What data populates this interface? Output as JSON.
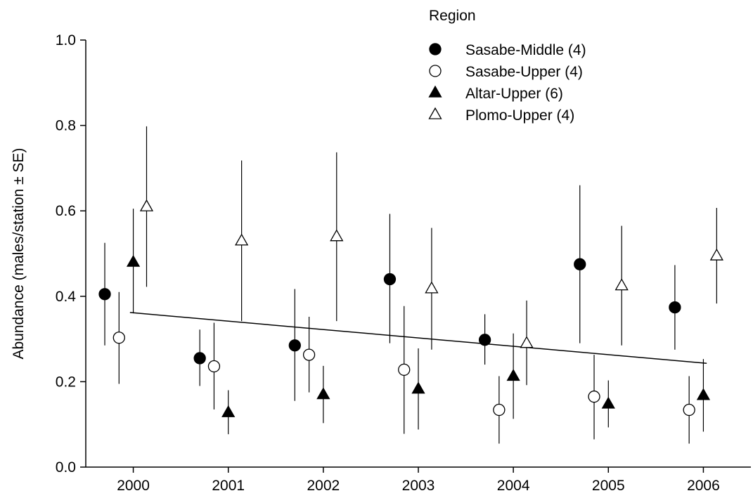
{
  "chart_data": {
    "type": "scatter",
    "title": "",
    "xlabel": "",
    "ylabel": "Abundance (males/station ± SE)",
    "xlim": [
      1999.5,
      2006.5
    ],
    "ylim": [
      0.0,
      1.0
    ],
    "x_ticks": [
      "2000",
      "2001",
      "2002",
      "2003",
      "2004",
      "2005",
      "2006"
    ],
    "y_ticks": [
      "0.0",
      "0.2",
      "0.4",
      "0.6",
      "0.8",
      "1.0"
    ],
    "grid": false,
    "legend": {
      "title": "Region",
      "position": "top-right"
    },
    "x": [
      2000,
      2001,
      2002,
      2003,
      2004,
      2005,
      2006
    ],
    "series": [
      {
        "name": "Sasabe-Middle (4)",
        "marker": "circle-filled",
        "values": [
          0.405,
          0.255,
          0.285,
          0.44,
          0.298,
          0.475,
          0.374
        ],
        "err_low": [
          0.285,
          0.19,
          0.155,
          0.29,
          0.24,
          0.29,
          0.275
        ],
        "err_high": [
          0.525,
          0.322,
          0.417,
          0.593,
          0.358,
          0.66,
          0.473
        ]
      },
      {
        "name": "Sasabe-Upper (4)",
        "marker": "circle-open",
        "values": [
          0.303,
          0.236,
          0.263,
          0.228,
          0.134,
          0.165,
          0.134
        ],
        "err_low": [
          0.195,
          0.135,
          0.175,
          0.078,
          0.055,
          0.065,
          0.055
        ],
        "err_high": [
          0.41,
          0.338,
          0.352,
          0.377,
          0.213,
          0.263,
          0.213
        ]
      },
      {
        "name": "Altar-Upper (6)",
        "marker": "triangle-filled",
        "values": [
          0.48,
          0.128,
          0.17,
          0.183,
          0.213,
          0.148,
          0.168
        ],
        "err_low": [
          0.36,
          0.077,
          0.103,
          0.088,
          0.113,
          0.093,
          0.083
        ],
        "err_high": [
          0.605,
          0.18,
          0.237,
          0.278,
          0.313,
          0.203,
          0.253
        ]
      },
      {
        "name": "Plomo-Upper (4)",
        "marker": "triangle-open",
        "values": [
          0.61,
          0.53,
          0.54,
          0.418,
          0.29,
          0.425,
          0.495
        ],
        "err_low": [
          0.422,
          0.342,
          0.342,
          0.275,
          0.192,
          0.285,
          0.383
        ],
        "err_high": [
          0.798,
          0.718,
          0.737,
          0.56,
          0.39,
          0.565,
          0.607
        ]
      }
    ],
    "trendline": {
      "x": [
        2000,
        2006
      ],
      "y": [
        0.362,
        0.243
      ]
    }
  }
}
